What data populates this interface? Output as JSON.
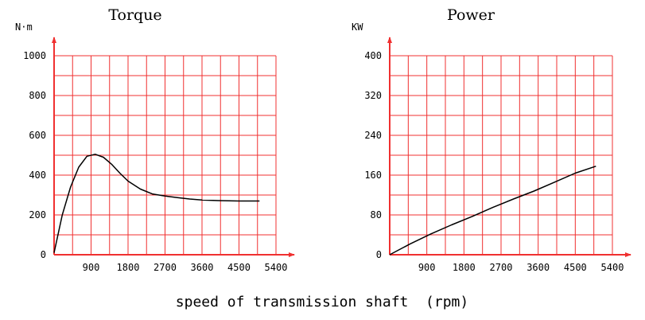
{
  "colors": {
    "grid": "#f03030",
    "curve": "#000000",
    "text": "#000000",
    "background": "#ffffff"
  },
  "x_axis_caption": "speed of transmission shaft  (rpm)",
  "chart_data": [
    {
      "type": "line",
      "title": "Torque",
      "ylabel": "N·m",
      "xlabel": "",
      "xlim": [
        0,
        5400
      ],
      "ylim": [
        0,
        1000
      ],
      "x_ticks": [
        900,
        1800,
        2700,
        3600,
        4500,
        5400
      ],
      "y_ticks": [
        0,
        200,
        400,
        600,
        800,
        1000
      ],
      "grid": true,
      "series": [
        {
          "x": [
            0,
            200,
            400,
            600,
            800,
            1000,
            1200,
            1400,
            1600,
            1800,
            2100,
            2400,
            2700,
            3000,
            3300,
            3600,
            4000,
            4500,
            5000
          ],
          "y": [
            10,
            200,
            340,
            440,
            495,
            505,
            490,
            455,
            410,
            370,
            330,
            305,
            295,
            287,
            280,
            275,
            272,
            270,
            270
          ]
        }
      ]
    },
    {
      "type": "line",
      "title": "Power",
      "ylabel": "KW",
      "xlabel": "",
      "xlim": [
        0,
        5400
      ],
      "ylim": [
        0,
        400
      ],
      "x_ticks": [
        900,
        1800,
        2700,
        3600,
        4500,
        5400
      ],
      "y_ticks": [
        0,
        80,
        160,
        240,
        320,
        400
      ],
      "grid": true,
      "series": [
        {
          "x": [
            0,
            500,
            1000,
            1500,
            2000,
            2500,
            3000,
            3500,
            4000,
            4500,
            5000
          ],
          "y": [
            0,
            22,
            42,
            60,
            77,
            95,
            112,
            128,
            146,
            164,
            178
          ]
        }
      ]
    }
  ]
}
